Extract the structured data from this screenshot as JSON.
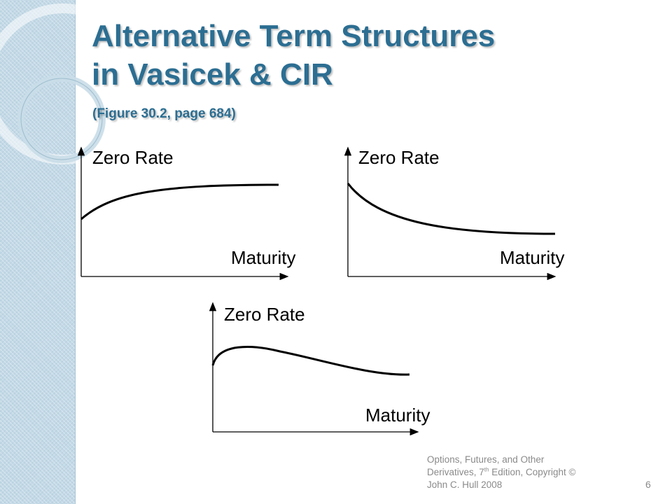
{
  "slide": {
    "title_line1": "Alternative  Term Structures",
    "title_line2": "in Vasicek & CIR",
    "subtitle": "(Figure 30.2, page 684)"
  },
  "diagrams": [
    {
      "y_label": "Zero Rate",
      "x_label": "Maturity",
      "shape": "upward sloping"
    },
    {
      "y_label": "Zero Rate",
      "x_label": "Maturity",
      "shape": "downward sloping"
    },
    {
      "y_label": "Zero Rate",
      "x_label": "Maturity",
      "shape": "humped"
    }
  ],
  "footer": {
    "line1": "Options, Futures, and Other",
    "line2a": "Derivatives, 7",
    "line2sup": "th",
    "line2b": " Edition, Copyright ©",
    "line3": "John  C. Hull 2008",
    "page_number": "6"
  },
  "colors": {
    "title": "#2c6e92",
    "sidebar": "#c3d9e6",
    "curve": "#000000",
    "footer_text": "#8a8a8a"
  }
}
